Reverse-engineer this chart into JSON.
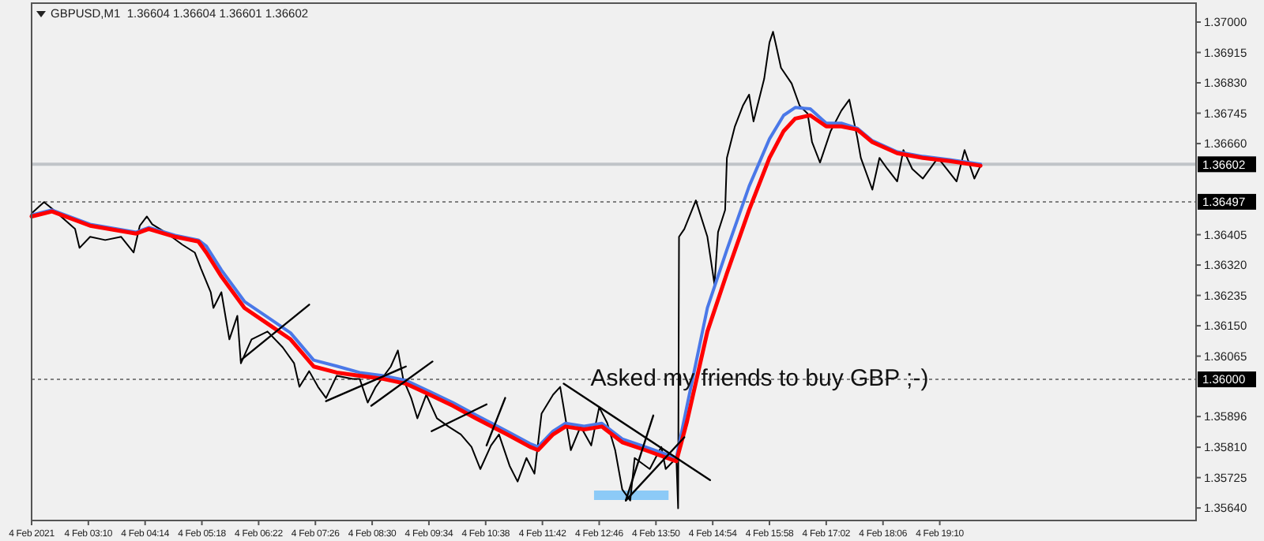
{
  "chart_data": {
    "type": "line",
    "title": "GBPUSD,M1  1.36604 1.36604 1.36601 1.36602",
    "annotations": [
      "Asked my friends to buy GBP ;-)"
    ],
    "xlim": [
      "2021-02-04T02:06",
      "2021-02-04T23:59"
    ],
    "xticks": [
      {
        "value": "2021-02-04T02:06",
        "label": "4 Feb 2021"
      },
      {
        "value": "2021-02-04T03:10",
        "label": "4 Feb 03:10"
      },
      {
        "value": "2021-02-04T04:14",
        "label": "4 Feb 04:14"
      },
      {
        "value": "2021-02-04T05:18",
        "label": "4 Feb 05:18"
      },
      {
        "value": "2021-02-04T06:22",
        "label": "4 Feb 06:22"
      },
      {
        "value": "2021-02-04T07:26",
        "label": "4 Feb 07:26"
      },
      {
        "value": "2021-02-04T08:30",
        "label": "4 Feb 08:30"
      },
      {
        "value": "2021-02-04T09:34",
        "label": "4 Feb 09:34"
      },
      {
        "value": "2021-02-04T10:38",
        "label": "4 Feb 10:38"
      },
      {
        "value": "2021-02-04T11:42",
        "label": "4 Feb 11:42"
      },
      {
        "value": "2021-02-04T12:46",
        "label": "4 Feb 12:46"
      },
      {
        "value": "2021-02-04T13:50",
        "label": "4 Feb 13:50"
      },
      {
        "value": "2021-02-04T14:54",
        "label": "4 Feb 14:54"
      },
      {
        "value": "2021-02-04T15:58",
        "label": "4 Feb 15:58"
      },
      {
        "value": "2021-02-04T17:02",
        "label": "4 Feb 17:02"
      },
      {
        "value": "2021-02-04T18:06",
        "label": "4 Feb 18:06"
      },
      {
        "value": "2021-02-04T19:10",
        "label": "4 Feb 19:10"
      }
    ],
    "ylim": [
      1.35605,
      1.37053
    ],
    "yticks": [
      {
        "value": 1.37,
        "label": "1.37000"
      },
      {
        "value": 1.36915,
        "label": "1.36915"
      },
      {
        "value": 1.3683,
        "label": "1.36830"
      },
      {
        "value": 1.36745,
        "label": "1.36745"
      },
      {
        "value": 1.3666,
        "label": "1.36660"
      },
      {
        "value": 1.36405,
        "label": "1.36405"
      },
      {
        "value": 1.3632,
        "label": "1.36320"
      },
      {
        "value": 1.36235,
        "label": "1.36235"
      },
      {
        "value": 1.3615,
        "label": "1.36150"
      },
      {
        "value": 1.36065,
        "label": "1.36065"
      },
      {
        "value": 1.35896,
        "label": "1.35896"
      },
      {
        "value": 1.3581,
        "label": "1.35810"
      },
      {
        "value": 1.35725,
        "label": "1.35725"
      },
      {
        "value": 1.3564,
        "label": "1.35640"
      }
    ],
    "grid": false,
    "marker": "none",
    "line_style": "solid",
    "ref_lines": [
      {
        "axis": "y",
        "value": 1.36602,
        "label": "1.36602",
        "color": "#c0c4c8",
        "line_style": "solid"
      },
      {
        "axis": "y",
        "value": 1.36497,
        "label": "1.36497",
        "color": "#808080",
        "line_style": "dotted"
      },
      {
        "axis": "y",
        "value": 1.36,
        "label": "1.36000",
        "color": "#808080",
        "line_style": "dotted"
      }
    ],
    "series": [
      {
        "color": "#000000",
        "x": [
          "2021-02-04T02:06",
          "2021-02-04T02:20",
          "2021-02-04T02:29",
          "2021-02-04T02:55",
          "2021-02-04T03:00",
          "2021-02-04T03:12",
          "2021-02-04T03:29",
          "2021-02-04T03:47",
          "2021-02-04T04:01",
          "2021-02-04T04:08",
          "2021-02-04T04:16",
          "2021-02-04T04:22",
          "2021-02-04T04:39",
          "2021-02-04T04:56",
          "2021-02-04T05:10",
          "2021-02-04T05:17",
          "2021-02-04T05:28",
          "2021-02-04T05:31",
          "2021-02-04T05:40",
          "2021-02-04T05:49",
          "2021-02-04T05:58",
          "2021-02-04T06:02",
          "2021-02-04T06:14",
          "2021-02-04T06:32",
          "2021-02-04T06:49",
          "2021-02-04T07:02",
          "2021-02-04T07:08",
          "2021-02-04T07:19",
          "2021-02-04T07:29",
          "2021-02-04T07:38",
          "2021-02-04T07:50",
          "2021-02-04T08:08",
          "2021-02-04T08:16",
          "2021-02-04T08:25",
          "2021-02-04T08:34",
          "2021-02-04T08:51",
          "2021-02-04T08:59",
          "2021-02-04T09:05",
          "2021-02-04T09:14",
          "2021-02-04T09:21",
          "2021-02-04T09:31",
          "2021-02-04T09:43",
          "2021-02-04T09:56",
          "2021-02-04T10:10",
          "2021-02-04T10:22",
          "2021-02-04T10:32",
          "2021-02-04T10:44",
          "2021-02-04T10:53",
          "2021-02-04T11:05",
          "2021-02-04T11:14",
          "2021-02-04T11:24",
          "2021-02-04T11:33",
          "2021-02-04T11:41",
          "2021-02-04T11:54",
          "2021-02-04T12:02",
          "2021-02-04T12:14",
          "2021-02-04T12:25",
          "2021-02-04T12:37",
          "2021-02-04T12:46",
          "2021-02-04T12:55",
          "2021-02-04T13:04",
          "2021-02-04T13:12",
          "2021-02-04T13:21",
          "2021-02-04T13:26",
          "2021-02-04T13:43",
          "2021-02-04T13:56",
          "2021-02-04T14:01",
          "2021-02-04T14:13",
          "2021-02-04T14:15",
          "2021-02-04T14:16",
          "2021-02-04T14:22",
          "2021-02-04T14:35",
          "2021-02-04T14:48",
          "2021-02-04T14:56",
          "2021-02-04T15:00",
          "2021-02-04T15:08",
          "2021-02-04T15:10",
          "2021-02-04T15:19",
          "2021-02-04T15:28",
          "2021-02-04T15:35",
          "2021-02-04T15:40",
          "2021-02-04T15:52",
          "2021-02-04T15:58",
          "2021-02-04T16:02",
          "2021-02-04T16:06",
          "2021-02-04T16:11",
          "2021-02-04T16:23",
          "2021-02-04T16:32",
          "2021-02-04T16:41",
          "2021-02-04T16:46",
          "2021-02-04T16:55",
          "2021-02-04T17:07",
          "2021-02-04T17:19",
          "2021-02-04T17:28",
          "2021-02-04T17:37",
          "2021-02-04T17:41",
          "2021-02-04T17:54",
          "2021-02-04T18:02",
          "2021-02-04T18:11",
          "2021-02-04T18:22",
          "2021-02-04T18:29",
          "2021-02-04T18:39",
          "2021-02-04T18:51",
          "2021-02-04T19:08",
          "2021-02-04T19:29",
          "2021-02-04T19:38",
          "2021-02-04T19:49",
          "2021-02-04T19:56"
        ],
        "values": [
          1.36465,
          1.36496,
          1.36478,
          1.36421,
          1.36368,
          1.36399,
          1.3639,
          1.36399,
          1.36355,
          1.3643,
          1.36456,
          1.36434,
          1.36408,
          1.36377,
          1.36355,
          1.3631,
          1.36244,
          1.362,
          1.36244,
          1.36112,
          1.36178,
          1.36045,
          1.36112,
          1.36134,
          1.3609,
          1.36045,
          1.35979,
          1.36023,
          1.35979,
          1.35948,
          1.3601,
          1.36001,
          1.36001,
          1.35935,
          1.35979,
          1.36036,
          1.36081,
          1.36001,
          1.35948,
          1.35891,
          1.35957,
          1.35891,
          1.35868,
          1.35846,
          1.35811,
          1.35749,
          1.35815,
          1.35846,
          1.35758,
          1.35714,
          1.3578,
          1.35736,
          1.35904,
          1.35957,
          1.35979,
          1.35802,
          1.35868,
          1.35815,
          1.35922,
          1.35878,
          1.35802,
          1.35692,
          1.35661,
          1.3578,
          1.35749,
          1.35811,
          1.35749,
          1.3578,
          1.35639,
          1.36399,
          1.36421,
          1.36501,
          1.36399,
          1.36266,
          1.36412,
          1.36474,
          1.3662,
          1.36708,
          1.36766,
          1.36797,
          1.36722,
          1.36841,
          1.36943,
          1.36973,
          1.36929,
          1.36872,
          1.36828,
          1.36766,
          1.36744,
          1.36664,
          1.36607,
          1.36695,
          1.36752,
          1.36783,
          1.36677,
          1.3662,
          1.36531,
          1.3662,
          1.36589,
          1.36554,
          1.36642,
          1.36589,
          1.36562,
          1.3662,
          1.36554,
          1.36642,
          1.36562,
          1.36598
        ]
      },
      {
        "color": "#4a78e8",
        "x": [
          "2021-02-04T02:06",
          "2021-02-04T02:29",
          "2021-02-04T03:12",
          "2021-02-04T04:04",
          "2021-02-04T04:18",
          "2021-02-04T04:48",
          "2021-02-04T05:14",
          "2021-02-04T05:23",
          "2021-02-04T05:40",
          "2021-02-04T06:06",
          "2021-02-04T06:32",
          "2021-02-04T06:58",
          "2021-02-04T07:24",
          "2021-02-04T07:50",
          "2021-02-04T08:16",
          "2021-02-04T08:43",
          "2021-02-04T09:08",
          "2021-02-04T09:35",
          "2021-02-04T10:01",
          "2021-02-04T10:27",
          "2021-02-04T11:02",
          "2021-02-04T11:28",
          "2021-02-04T11:37",
          "2021-02-04T11:54",
          "2021-02-04T12:08",
          "2021-02-04T12:29",
          "2021-02-04T12:49",
          "2021-02-04T13:12",
          "2021-02-04T13:38",
          "2021-02-04T14:13",
          "2021-02-04T14:25",
          "2021-02-04T14:48",
          "2021-02-04T15:10",
          "2021-02-04T15:35",
          "2021-02-04T15:58",
          "2021-02-04T16:14",
          "2021-02-04T16:27",
          "2021-02-04T16:44",
          "2021-02-04T17:02",
          "2021-02-04T17:19",
          "2021-02-04T17:37",
          "2021-02-04T17:54",
          "2021-02-04T18:22",
          "2021-02-04T18:51",
          "2021-02-04T19:21",
          "2021-02-04T19:56"
        ],
        "values": [
          1.3646,
          1.36474,
          1.36434,
          1.36412,
          1.36425,
          1.36403,
          1.3639,
          1.36373,
          1.36306,
          1.36218,
          1.36174,
          1.3613,
          1.36054,
          1.36037,
          1.36019,
          1.3601,
          1.35997,
          1.35966,
          1.35935,
          1.359,
          1.35855,
          1.3582,
          1.35811,
          1.35855,
          1.35877,
          1.35869,
          1.35877,
          1.35833,
          1.35811,
          1.3578,
          1.35926,
          1.362,
          1.36363,
          1.3654,
          1.36673,
          1.36739,
          1.36761,
          1.36757,
          1.36717,
          1.36717,
          1.36703,
          1.36668,
          1.36637,
          1.36624,
          1.36615,
          1.36602
        ]
      },
      {
        "color": "#ff0000",
        "x": [
          "2021-02-04T02:06",
          "2021-02-04T02:29",
          "2021-02-04T03:12",
          "2021-02-04T04:04",
          "2021-02-04T04:18",
          "2021-02-04T04:48",
          "2021-02-04T05:14",
          "2021-02-04T05:23",
          "2021-02-04T05:40",
          "2021-02-04T06:06",
          "2021-02-04T06:32",
          "2021-02-04T06:58",
          "2021-02-04T07:24",
          "2021-02-04T07:50",
          "2021-02-04T08:16",
          "2021-02-04T08:43",
          "2021-02-04T09:08",
          "2021-02-04T09:35",
          "2021-02-04T10:01",
          "2021-02-04T10:27",
          "2021-02-04T11:02",
          "2021-02-04T11:28",
          "2021-02-04T11:37",
          "2021-02-04T11:54",
          "2021-02-04T12:08",
          "2021-02-04T12:29",
          "2021-02-04T12:49",
          "2021-02-04T13:12",
          "2021-02-04T13:38",
          "2021-02-04T14:13",
          "2021-02-04T14:25",
          "2021-02-04T14:48",
          "2021-02-04T15:10",
          "2021-02-04T15:35",
          "2021-02-04T15:58",
          "2021-02-04T16:14",
          "2021-02-04T16:27",
          "2021-02-04T16:44",
          "2021-02-04T17:02",
          "2021-02-04T17:19",
          "2021-02-04T17:37",
          "2021-02-04T17:54",
          "2021-02-04T18:22",
          "2021-02-04T18:51",
          "2021-02-04T19:21",
          "2021-02-04T19:56"
        ],
        "values": [
          1.36456,
          1.3647,
          1.3643,
          1.36408,
          1.36421,
          1.36399,
          1.36386,
          1.36355,
          1.36288,
          1.362,
          1.36156,
          1.36112,
          1.36036,
          1.36019,
          1.3601,
          1.36001,
          1.35988,
          1.35957,
          1.35926,
          1.35891,
          1.35846,
          1.35811,
          1.35802,
          1.35846,
          1.35868,
          1.3586,
          1.35868,
          1.35824,
          1.35802,
          1.35771,
          1.35882,
          1.36134,
          1.36297,
          1.36474,
          1.3662,
          1.36695,
          1.3673,
          1.36739,
          1.36708,
          1.36708,
          1.36699,
          1.36664,
          1.36633,
          1.3662,
          1.36611,
          1.36598
        ]
      },
      {
        "color": "#000000",
        "x": [
          "2021-02-04T06:02",
          "2021-02-04T07:19"
        ],
        "values": [
          1.36054,
          1.36209
        ]
      },
      {
        "color": "#000000",
        "x": [
          "2021-02-04T07:38",
          "2021-02-04T09:08"
        ],
        "values": [
          1.35939,
          1.36036
        ]
      },
      {
        "color": "#000000",
        "x": [
          "2021-02-04T08:29",
          "2021-02-04T09:38"
        ],
        "values": [
          1.35926,
          1.3605
        ]
      },
      {
        "color": "#000000",
        "x": [
          "2021-02-04T09:37",
          "2021-02-04T10:39"
        ],
        "values": [
          1.35855,
          1.3593
        ]
      },
      {
        "color": "#000000",
        "x": [
          "2021-02-04T10:39",
          "2021-02-04T11:00"
        ],
        "values": [
          1.35815,
          1.35948
        ]
      },
      {
        "color": "#000000",
        "x": [
          "2021-02-04T12:06",
          "2021-02-04T14:51"
        ],
        "values": [
          1.35988,
          1.35718
        ]
      },
      {
        "color": "#000000",
        "x": [
          "2021-02-04T13:16",
          "2021-02-04T13:47"
        ],
        "values": [
          1.35661,
          1.35899
        ]
      },
      {
        "color": "#000000",
        "x": [
          "2021-02-04T13:16",
          "2021-02-04T14:22"
        ],
        "values": [
          1.35661,
          1.35838
        ]
      }
    ]
  }
}
